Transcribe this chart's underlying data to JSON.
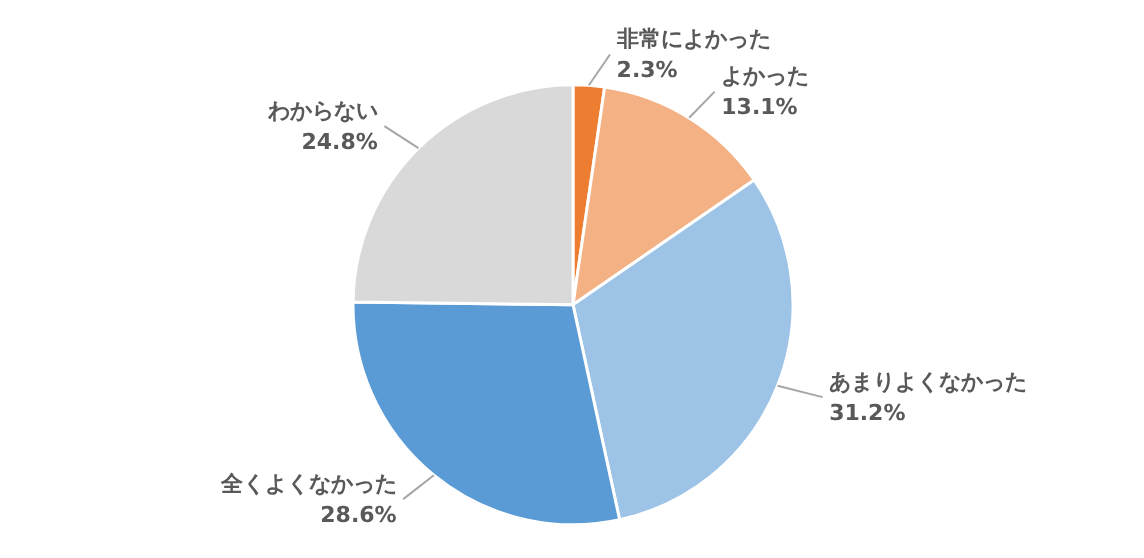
{
  "chart_data": {
    "type": "pie",
    "categories": [
      "非常によかった",
      "よかった",
      "あまりよくなかった",
      "全くよくなかった",
      "わからない"
    ],
    "values": [
      2.3,
      13.1,
      31.2,
      28.6,
      24.8
    ],
    "colors": [
      "#ed7d31",
      "#f4b183",
      "#9dc3e6",
      "#5b9bd5",
      "#d9d9d9"
    ],
    "value_labels": [
      "2.3%",
      "13.1%",
      "31.2%",
      "28.6%",
      "24.8%"
    ]
  }
}
